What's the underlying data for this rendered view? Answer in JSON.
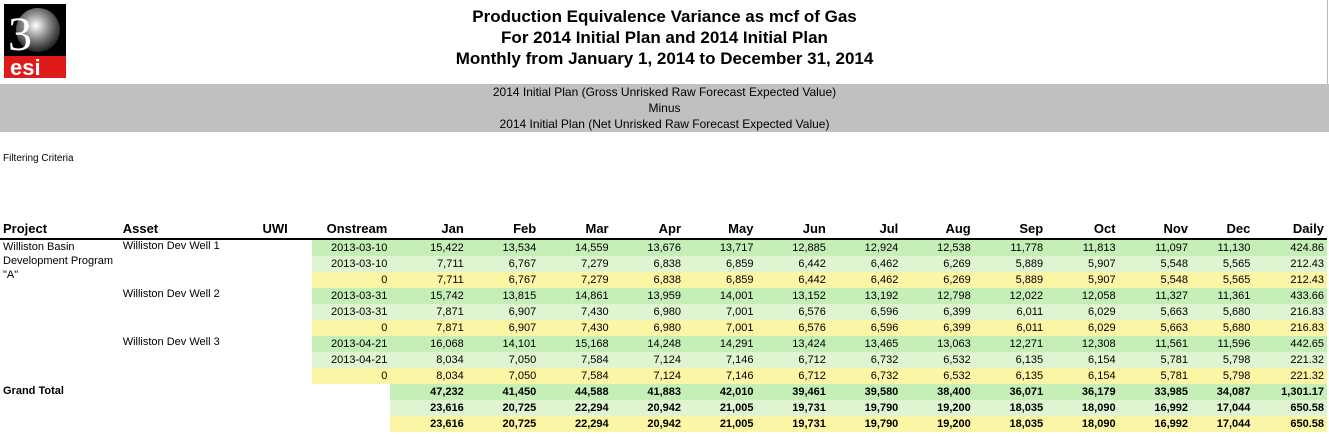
{
  "logo": {
    "text_top": "3",
    "text_bottom": "esi"
  },
  "title": {
    "line1": "Production Equivalence Variance as mcf of Gas",
    "line2": "For 2014 Initial Plan and 2014 Initial Plan",
    "line3": "Monthly from January 1, 2014 to December 31, 2014"
  },
  "banner": {
    "line1": "2014 Initial Plan (Gross Unrisked Raw Forecast Expected Value)",
    "line2": "Minus",
    "line3": "2014 Initial Plan (Net Unrisked Raw Forecast Expected Value)"
  },
  "filter_label": "Filtering Criteria",
  "columns": [
    "Project",
    "Asset",
    "UWI",
    "Onstream",
    "Jan",
    "Feb",
    "Mar",
    "Apr",
    "May",
    "Jun",
    "Jul",
    "Aug",
    "Sep",
    "Oct",
    "Nov",
    "Dec",
    "Daily"
  ],
  "project_name": "Williston Basin Development Program \"A\"",
  "wells": [
    {
      "asset": "Williston Dev Well 1",
      "rows": [
        {
          "onstream": "2013-03-10",
          "vals": [
            "15,422",
            "13,534",
            "14,559",
            "13,676",
            "13,717",
            "12,885",
            "12,924",
            "12,538",
            "11,778",
            "11,813",
            "11,097",
            "11,130",
            "424.86"
          ]
        },
        {
          "onstream": "2013-03-10",
          "vals": [
            "7,711",
            "6,767",
            "7,279",
            "6,838",
            "6,859",
            "6,442",
            "6,462",
            "6,269",
            "5,889",
            "5,907",
            "5,548",
            "5,565",
            "212.43"
          ]
        },
        {
          "onstream": "0",
          "vals": [
            "7,711",
            "6,767",
            "7,279",
            "6,838",
            "6,859",
            "6,442",
            "6,462",
            "6,269",
            "5,889",
            "5,907",
            "5,548",
            "5,565",
            "212.43"
          ]
        }
      ]
    },
    {
      "asset": "Williston Dev Well 2",
      "rows": [
        {
          "onstream": "2013-03-31",
          "vals": [
            "15,742",
            "13,815",
            "14,861",
            "13,959",
            "14,001",
            "13,152",
            "13,192",
            "12,798",
            "12,022",
            "12,058",
            "11,327",
            "11,361",
            "433.66"
          ]
        },
        {
          "onstream": "2013-03-31",
          "vals": [
            "7,871",
            "6,907",
            "7,430",
            "6,980",
            "7,001",
            "6,576",
            "6,596",
            "6,399",
            "6,011",
            "6,029",
            "5,663",
            "5,680",
            "216.83"
          ]
        },
        {
          "onstream": "0",
          "vals": [
            "7,871",
            "6,907",
            "7,430",
            "6,980",
            "7,001",
            "6,576",
            "6,596",
            "6,399",
            "6,011",
            "6,029",
            "5,663",
            "5,680",
            "216.83"
          ]
        }
      ]
    },
    {
      "asset": "Williston Dev Well 3",
      "rows": [
        {
          "onstream": "2013-04-21",
          "vals": [
            "16,068",
            "14,101",
            "15,168",
            "14,248",
            "14,291",
            "13,424",
            "13,465",
            "13,063",
            "12,271",
            "12,308",
            "11,561",
            "11,596",
            "442.65"
          ]
        },
        {
          "onstream": "2013-04-21",
          "vals": [
            "8,034",
            "7,050",
            "7,584",
            "7,124",
            "7,146",
            "6,712",
            "6,732",
            "6,532",
            "6,135",
            "6,154",
            "5,781",
            "5,798",
            "221.32"
          ]
        },
        {
          "onstream": "0",
          "vals": [
            "8,034",
            "7,050",
            "7,584",
            "7,124",
            "7,146",
            "6,712",
            "6,732",
            "6,532",
            "6,135",
            "6,154",
            "5,781",
            "5,798",
            "221.32"
          ]
        }
      ]
    }
  ],
  "grand_total": {
    "label": "Grand Total",
    "rows": [
      [
        "47,232",
        "41,450",
        "44,588",
        "41,883",
        "42,010",
        "39,461",
        "39,580",
        "38,400",
        "36,071",
        "36,179",
        "33,985",
        "34,087",
        "1,301.17"
      ],
      [
        "23,616",
        "20,725",
        "22,294",
        "20,942",
        "21,005",
        "19,731",
        "19,790",
        "19,200",
        "18,035",
        "18,090",
        "16,992",
        "17,044",
        "650.58"
      ],
      [
        "23,616",
        "20,725",
        "22,294",
        "20,942",
        "21,005",
        "19,731",
        "19,790",
        "19,200",
        "18,035",
        "18,090",
        "16,992",
        "17,044",
        "650.58"
      ]
    ]
  },
  "colors": {
    "green_dark": "#c6efb8",
    "green_light": "#dff5d2",
    "yellow": "#fbf5a6",
    "banner": "#c0c0c0"
  }
}
